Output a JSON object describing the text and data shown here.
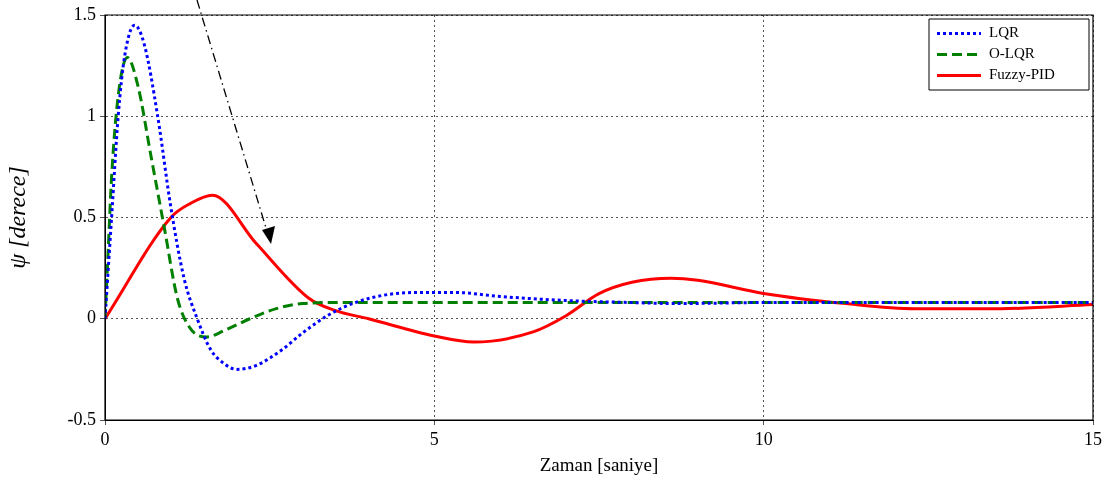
{
  "chart_data": {
    "type": "line",
    "xlabel": "Zaman [saniye]",
    "ylabel": "ψ [derece]",
    "xlim": [
      0,
      15
    ],
    "xticks": [
      0,
      5,
      10,
      15
    ],
    "ylim": [
      -0.5,
      1.5
    ],
    "yticks": [
      -0.5,
      0,
      0.5,
      1,
      1.5
    ],
    "grid": true,
    "legend": "top right",
    "marker": "none",
    "series": [
      {
        "name": "LQR",
        "color": "#0000ff",
        "line_style": "dotted",
        "x": [
          0,
          0.1,
          0.2,
          0.3,
          0.45,
          0.6,
          0.8,
          1.0,
          1.2,
          1.4,
          1.6,
          1.8,
          2.0,
          2.3,
          2.7,
          3.0,
          3.4,
          3.8,
          4.3,
          4.8,
          5.3,
          6.0,
          7.0,
          8.0,
          8.7,
          10,
          15
        ],
        "values": [
          0,
          0.5,
          1.0,
          1.3,
          1.45,
          1.35,
          1.0,
          0.55,
          0.2,
          0.0,
          -0.15,
          -0.22,
          -0.25,
          -0.23,
          -0.15,
          -0.07,
          0.02,
          0.08,
          0.12,
          0.13,
          0.13,
          0.11,
          0.09,
          0.08,
          0.075,
          0.08,
          0.08
        ]
      },
      {
        "name": "O-LQR",
        "color": "#008000",
        "line_style": "dashed",
        "x": [
          0,
          0.05,
          0.1,
          0.2,
          0.34,
          0.5,
          0.7,
          0.9,
          1.1,
          1.3,
          1.55,
          1.8,
          2.2,
          2.6,
          3.0,
          3.5,
          15
        ],
        "values": [
          0,
          0.35,
          0.7,
          1.1,
          1.29,
          1.15,
          0.8,
          0.45,
          0.1,
          -0.05,
          -0.09,
          -0.06,
          0.0,
          0.05,
          0.075,
          0.08,
          0.08
        ]
      },
      {
        "name": "Fuzzy-PID",
        "color": "#ff0000",
        "line_style": "solid",
        "x": [
          0,
          1.0,
          1.3,
          1.63,
          2.3,
          3.1,
          3.5,
          4.0,
          5.0,
          5.6,
          6.5,
          7.0,
          7.5,
          8.0,
          8.6,
          9.0,
          10,
          11.25,
          12.3,
          13.6,
          15
        ],
        "values": [
          0,
          0.5,
          0.57,
          0.61,
          0.37,
          0.1,
          0.04,
          0.0,
          -0.085,
          -0.115,
          -0.065,
          0.015,
          0.124,
          0.18,
          0.2,
          0.19,
          0.125,
          0.075,
          0.05,
          0.05,
          0.07
        ]
      }
    ]
  }
}
